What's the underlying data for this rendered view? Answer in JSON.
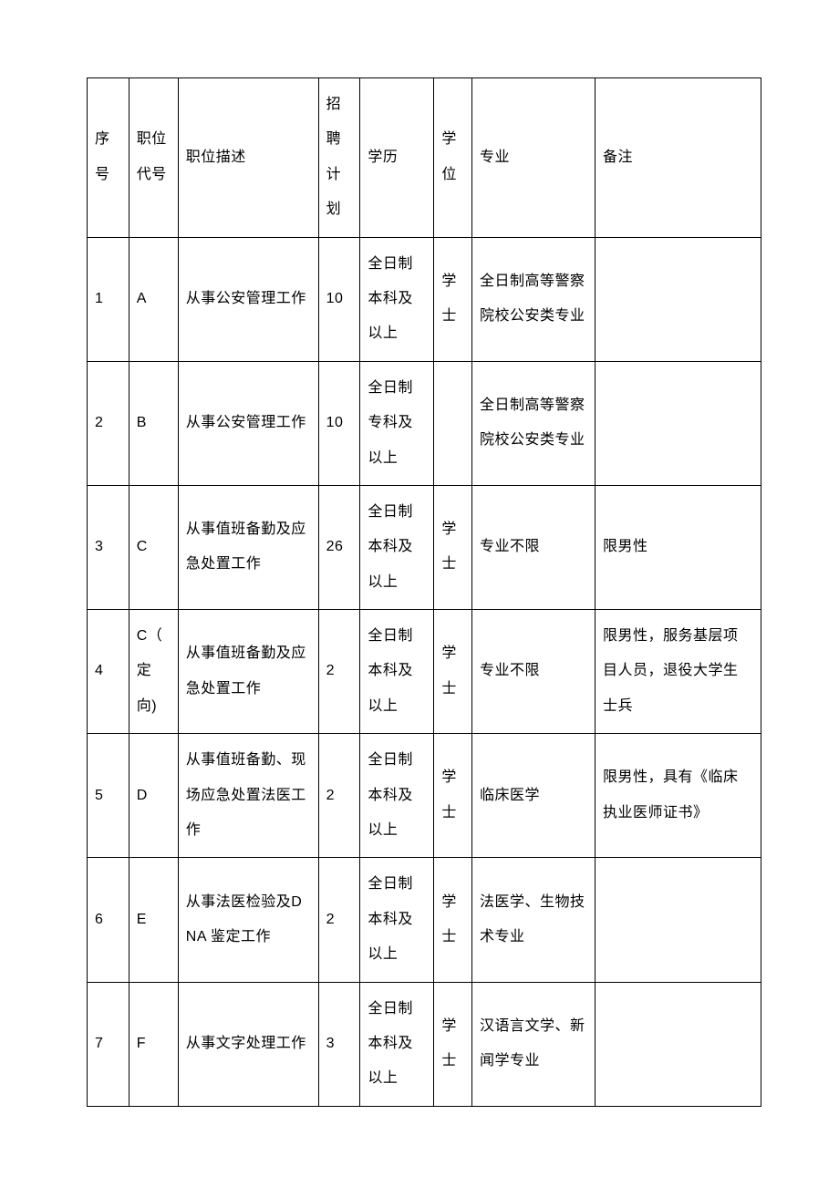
{
  "table": {
    "headers": {
      "seq": "序号",
      "code": "职位代号",
      "desc": "职位描述",
      "plan": "招聘计划",
      "edu": "学历",
      "degree": "学位",
      "major": "专业",
      "remark": "备注"
    },
    "rows": [
      {
        "seq": "1",
        "code": "A",
        "desc": "从事公安管理工作",
        "plan": "10",
        "edu": "全日制本科及以上",
        "degree": "学士",
        "major": "全日制高等警察院校公安类专业",
        "remark": ""
      },
      {
        "seq": "2",
        "code": "B",
        "desc": "从事公安管理工作",
        "plan": "10",
        "edu": "全日制专科及以上",
        "degree": "",
        "major": "全日制高等警察院校公安类专业",
        "remark": ""
      },
      {
        "seq": "3",
        "code": "C",
        "desc": "从事值班备勤及应急处置工作",
        "plan": "26",
        "edu": "全日制本科及以上",
        "degree": "学士",
        "major": "专业不限",
        "remark": "限男性"
      },
      {
        "seq": "4",
        "code": "C（ 定向)",
        "desc": "从事值班备勤及应急处置工作",
        "plan": "2",
        "edu": "全日制本科及以上",
        "degree": "学士",
        "major": "专业不限",
        "remark": "限男性，服务基层项目人员，退役大学生士兵"
      },
      {
        "seq": "5",
        "code": "D",
        "desc": "从事值班备勤、现场应急处置法医工作",
        "plan": "2",
        "edu": "全日制本科及以上",
        "degree": "学士",
        "major": "临床医学",
        "remark": "限男性，具有《临床执业医师证书》"
      },
      {
        "seq": "6",
        "code": "E",
        "desc": "从事法医检验及DNA 鉴定工作",
        "plan": "2",
        "edu": "全日制本科及以上",
        "degree": "学士",
        "major": "法医学、生物技术专业",
        "remark": ""
      },
      {
        "seq": "7",
        "code": "F",
        "desc": "从事文字处理工作",
        "plan": "3",
        "edu": "全日制本科及以上",
        "degree": "学士",
        "major": "汉语言文学、新闻学专业",
        "remark": ""
      }
    ],
    "styling": {
      "border_color": "#000000",
      "border_width": 1.5,
      "background_color": "#ffffff",
      "text_color": "#000000",
      "font_size": 16,
      "line_height": 2.4,
      "cell_padding": "10px 8px",
      "column_widths": {
        "seq": 44,
        "code": 52,
        "desc": 148,
        "plan": 44,
        "edu": 78,
        "degree": 40,
        "major": 130,
        "remark": 175
      }
    }
  }
}
